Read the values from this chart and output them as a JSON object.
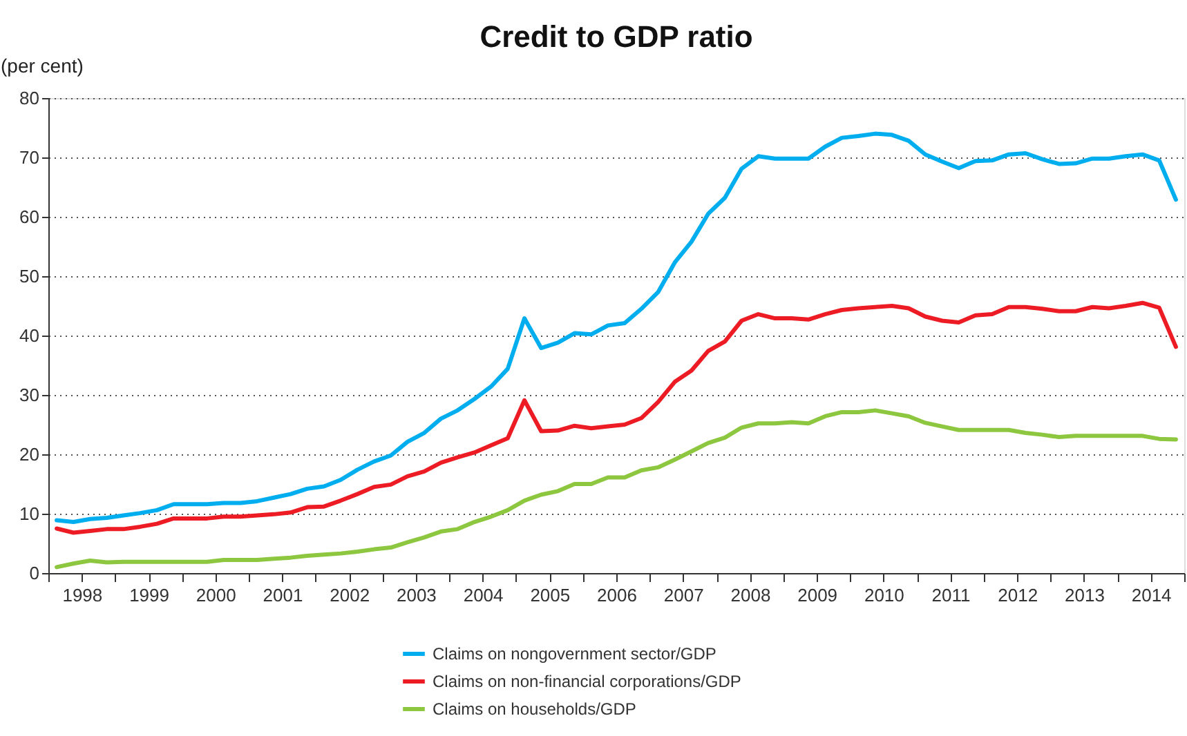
{
  "chart_data": {
    "type": "line",
    "title": "Credit to GDP ratio",
    "ylabel": "(per cent)",
    "x": [
      1998.125,
      1998.375,
      1998.625,
      1998.875,
      1999.125,
      1999.375,
      1999.625,
      1999.875,
      2000.125,
      2000.375,
      2000.625,
      2000.875,
      2001.125,
      2001.375,
      2001.625,
      2001.875,
      2002.125,
      2002.375,
      2002.625,
      2002.875,
      2003.125,
      2003.375,
      2003.625,
      2003.875,
      2004.125,
      2004.375,
      2004.625,
      2004.875,
      2005.125,
      2005.375,
      2005.625,
      2005.875,
      2006.125,
      2006.375,
      2006.625,
      2006.875,
      2007.125,
      2007.375,
      2007.625,
      2007.875,
      2008.125,
      2008.375,
      2008.625,
      2008.875,
      2009.125,
      2009.375,
      2009.625,
      2009.875,
      2010.125,
      2010.375,
      2010.625,
      2010.875,
      2011.125,
      2011.375,
      2011.625,
      2011.875,
      2012.125,
      2012.375,
      2012.625,
      2012.875,
      2013.125,
      2013.375,
      2013.625,
      2013.875,
      2014.125,
      2014.375,
      2014.625,
      2014.875
    ],
    "series": [
      {
        "name": "Claims on nongovernment sector/GDP",
        "color": "#00aeef",
        "values": [
          8.9,
          8.6,
          9.1,
          9.3,
          9.7,
          10.1,
          10.6,
          11.6,
          11.6,
          11.6,
          11.8,
          11.8,
          12.1,
          12.7,
          13.3,
          14.2,
          14.6,
          15.7,
          17.4,
          18.8,
          19.8,
          22.1,
          23.6,
          26.0,
          27.4,
          29.3,
          31.4,
          34.4,
          42.9,
          37.9,
          38.8,
          40.4,
          40.2,
          41.7,
          42.1,
          44.5,
          47.3,
          52.3,
          55.8,
          60.5,
          63.2,
          68.1,
          70.2,
          69.8,
          69.8,
          69.8,
          71.8,
          73.3,
          73.6,
          74.0,
          73.8,
          72.8,
          70.5,
          69.3,
          68.2,
          69.4,
          69.5,
          70.5,
          70.7,
          69.7,
          68.9,
          69.0,
          69.8,
          69.8,
          70.2,
          70.5,
          69.5,
          62.9
        ]
      },
      {
        "name": "Claims on non-financial corporations/GDP",
        "color": "#ed1c24",
        "values": [
          7.5,
          6.8,
          7.1,
          7.4,
          7.4,
          7.8,
          8.3,
          9.2,
          9.2,
          9.2,
          9.5,
          9.5,
          9.7,
          9.9,
          10.2,
          11.1,
          11.2,
          12.2,
          13.3,
          14.5,
          14.9,
          16.3,
          17.1,
          18.6,
          19.5,
          20.3,
          21.5,
          22.7,
          29.1,
          23.9,
          24.0,
          24.8,
          24.4,
          24.7,
          25.0,
          26.1,
          28.8,
          32.2,
          34.1,
          37.4,
          39.0,
          42.5,
          43.6,
          42.9,
          42.9,
          42.7,
          43.6,
          44.3,
          44.6,
          44.8,
          45.0,
          44.6,
          43.2,
          42.5,
          42.2,
          43.4,
          43.6,
          44.8,
          44.8,
          44.5,
          44.1,
          44.1,
          44.8,
          44.6,
          45.0,
          45.5,
          44.7,
          38.1
        ]
      },
      {
        "name": "Claims on households/GDP",
        "color": "#8dc63f",
        "values": [
          1.0,
          1.6,
          2.1,
          1.8,
          1.9,
          1.9,
          1.9,
          1.9,
          1.9,
          1.9,
          2.2,
          2.2,
          2.2,
          2.4,
          2.6,
          2.9,
          3.1,
          3.3,
          3.6,
          4.0,
          4.3,
          5.2,
          6.0,
          7.0,
          7.4,
          8.6,
          9.5,
          10.6,
          12.2,
          13.2,
          13.8,
          15.0,
          15.0,
          16.1,
          16.1,
          17.3,
          17.8,
          19.1,
          20.5,
          21.9,
          22.8,
          24.5,
          25.2,
          25.2,
          25.4,
          25.2,
          26.4,
          27.1,
          27.1,
          27.4,
          26.9,
          26.4,
          25.3,
          24.7,
          24.1,
          24.1,
          24.1,
          24.1,
          23.6,
          23.3,
          22.9,
          23.1,
          23.1,
          23.1,
          23.1,
          23.1,
          22.6,
          22.5
        ]
      }
    ],
    "xlim": [
      1998,
      2015
    ],
    "xticks": [
      {
        "value": 1998,
        "label": null
      },
      {
        "value": 1998.5,
        "label": "1998"
      },
      {
        "value": 1999,
        "label": null
      },
      {
        "value": 1999.5,
        "label": "1999"
      },
      {
        "value": 2000,
        "label": null
      },
      {
        "value": 2000.5,
        "label": "2000"
      },
      {
        "value": 2001,
        "label": null
      },
      {
        "value": 2001.5,
        "label": "2001"
      },
      {
        "value": 2002,
        "label": null
      },
      {
        "value": 2002.5,
        "label": "2002"
      },
      {
        "value": 2003,
        "label": null
      },
      {
        "value": 2003.5,
        "label": "2003"
      },
      {
        "value": 2004,
        "label": null
      },
      {
        "value": 2004.5,
        "label": "2004"
      },
      {
        "value": 2005,
        "label": null
      },
      {
        "value": 2005.5,
        "label": "2005"
      },
      {
        "value": 2006,
        "label": null
      },
      {
        "value": 2006.5,
        "label": "2006"
      },
      {
        "value": 2007,
        "label": null
      },
      {
        "value": 2007.5,
        "label": "2007"
      },
      {
        "value": 2008,
        "label": null
      },
      {
        "value": 2008.5,
        "label": "2008"
      },
      {
        "value": 2009,
        "label": null
      },
      {
        "value": 2009.5,
        "label": "2009"
      },
      {
        "value": 2010,
        "label": null
      },
      {
        "value": 2010.5,
        "label": "2010"
      },
      {
        "value": 2011,
        "label": null
      },
      {
        "value": 2011.5,
        "label": "2011"
      },
      {
        "value": 2012,
        "label": null
      },
      {
        "value": 2012.5,
        "label": "2012"
      },
      {
        "value": 2013,
        "label": null
      },
      {
        "value": 2013.5,
        "label": "2013"
      },
      {
        "value": 2014,
        "label": null
      },
      {
        "value": 2014.5,
        "label": "2014"
      },
      {
        "value": 2015,
        "label": null
      }
    ],
    "ylim": [
      0,
      80
    ],
    "yticks": [
      0,
      10,
      20,
      30,
      40,
      50,
      60,
      70,
      80
    ],
    "grid": "y",
    "legend": "bottom",
    "marker": "none",
    "line_style": "solid"
  }
}
